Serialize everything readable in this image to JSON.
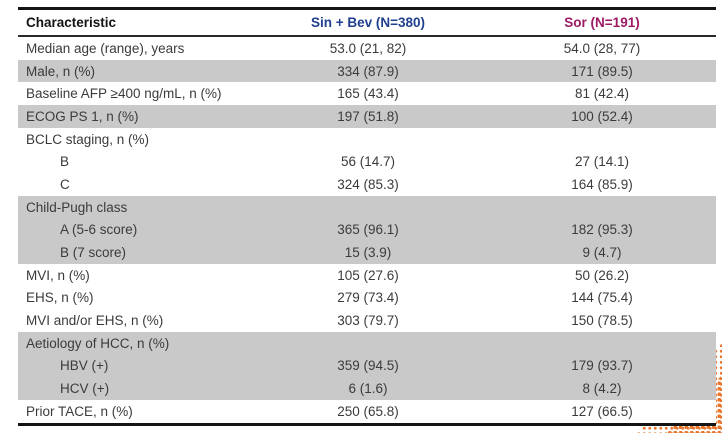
{
  "colors": {
    "sin_bev_header": "#203f8f",
    "sor_header": "#9e1a64",
    "row_shade": "#c9c9c9",
    "corner_dots": "#e8762c",
    "border": "#141414"
  },
  "table": {
    "header": {
      "characteristic": "Characteristic",
      "sin_bev": "Sin + Bev (N=380)",
      "sor": "Sor (N=191)"
    },
    "rows": [
      {
        "label": "Median age (range), years",
        "sin_bev": "53.0 (21, 82)",
        "sor": "54.0 (28, 77)"
      },
      {
        "label": "Male, n (%)",
        "sin_bev": "334 (87.9)",
        "sor": "171 (89.5)"
      },
      {
        "label": "Baseline AFP ≥400 ng/mL, n (%)",
        "sin_bev": "165 (43.4)",
        "sor": "81 (42.4)"
      },
      {
        "label": "ECOG PS 1, n (%)",
        "sin_bev": "197 (51.8)",
        "sor": "100 (52.4)"
      },
      {
        "label": "BCLC staging, n (%)",
        "sin_bev": "",
        "sor": ""
      },
      {
        "label": "B",
        "sin_bev": "56 (14.7)",
        "sor": "27 (14.1)"
      },
      {
        "label": "C",
        "sin_bev": "324 (85.3)",
        "sor": "164 (85.9)"
      },
      {
        "label": "Child-Pugh class",
        "sin_bev": "",
        "sor": ""
      },
      {
        "label": "A  (5-6 score)",
        "sin_bev": "365 (96.1)",
        "sor": "182 (95.3)"
      },
      {
        "label": "B  (7 score)",
        "sin_bev": "15 (3.9)",
        "sor": "9 (4.7)"
      },
      {
        "label": "MVI, n (%)",
        "sin_bev": "105 (27.6)",
        "sor": "50 (26.2)"
      },
      {
        "label": "EHS, n (%)",
        "sin_bev": "279 (73.4)",
        "sor": "144 (75.4)"
      },
      {
        "label": "MVI and/or EHS, n (%)",
        "sin_bev": "303 (79.7)",
        "sor": "150 (78.5)"
      },
      {
        "label": "Aetiology of HCC, n (%)",
        "sin_bev": "",
        "sor": ""
      },
      {
        "label": "HBV (+)",
        "sin_bev": "359 (94.5)",
        "sor": "179 (93.7)"
      },
      {
        "label": "HCV (+)",
        "sin_bev": "6 (1.6)",
        "sor": "8 (4.2)"
      },
      {
        "label": "Prior TACE, n (%)",
        "sin_bev": "250 (65.8)",
        "sor": "127 (66.5)"
      }
    ]
  }
}
